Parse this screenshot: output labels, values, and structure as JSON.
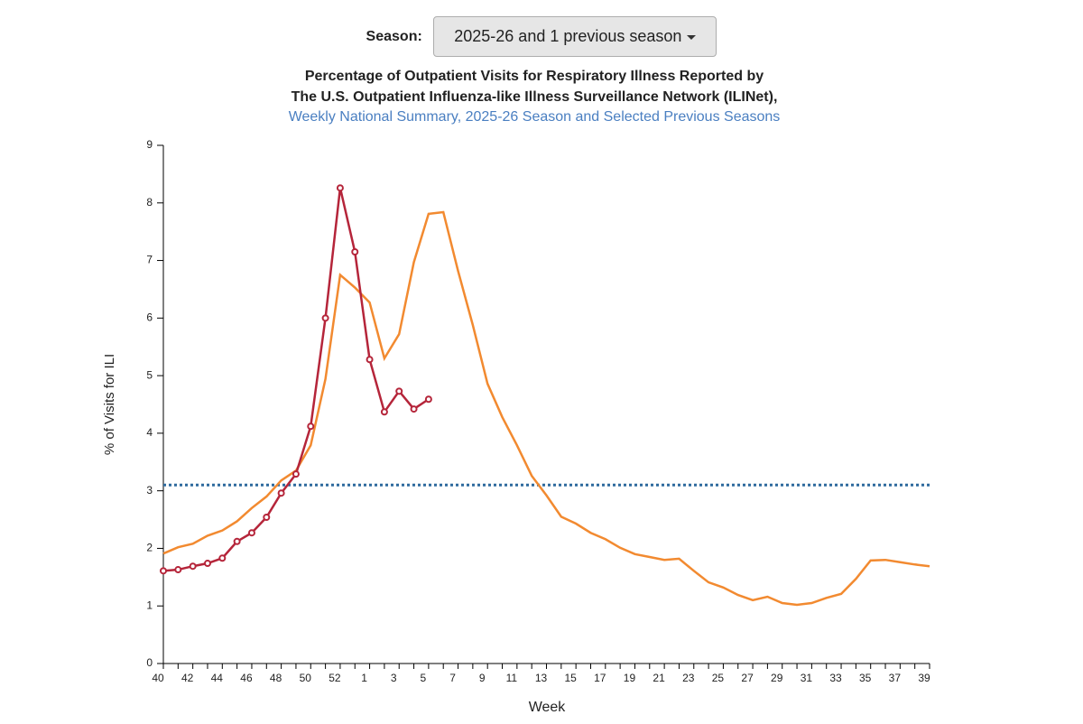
{
  "season_selector": {
    "label": "Season:",
    "value": "2025-26 and 1 previous season"
  },
  "chart_data": {
    "type": "line",
    "title": [
      "Percentage of Outpatient Visits for Respiratory Illness Reported by",
      "The U.S. Outpatient Influenza-like Illness Surveillance Network (ILINet),"
    ],
    "subtitle": "Weekly National Summary, 2025-26 Season and Selected Previous Seasons",
    "x_label": "Week",
    "y_label": "% of Visits for ILI",
    "categories": [
      40,
      null,
      42,
      null,
      44,
      null,
      46,
      null,
      48,
      null,
      50,
      null,
      52,
      null,
      1,
      null,
      3,
      null,
      5,
      null,
      7,
      null,
      9,
      null,
      11,
      null,
      13,
      null,
      15,
      null,
      17,
      null,
      19,
      null,
      21,
      null,
      23,
      null,
      25,
      null,
      27,
      null,
      29,
      null,
      31,
      null,
      33,
      null,
      35,
      null,
      37,
      null,
      39
    ],
    "ylim": [
      0,
      9
    ],
    "yticks": [
      0,
      1,
      2,
      3,
      4,
      5,
      6,
      7,
      8,
      9
    ],
    "baseline": 3.1,
    "baseline_color": "#2e6a9e",
    "series": [
      {
        "color": "#f28a30",
        "markers": false,
        "values": [
          1.91,
          2.02,
          2.08,
          2.22,
          2.31,
          2.47,
          2.7,
          2.9,
          3.18,
          3.35,
          3.79,
          4.94,
          6.75,
          6.53,
          6.27,
          5.3,
          5.72,
          6.97,
          7.81,
          7.84,
          6.82,
          5.88,
          4.86,
          4.28,
          3.79,
          3.26,
          2.92,
          2.55,
          2.43,
          2.27,
          2.16,
          2.01,
          1.9,
          1.85,
          1.8,
          1.82,
          1.61,
          1.41,
          1.32,
          1.19,
          1.1,
          1.16,
          1.05,
          1.02,
          1.05,
          1.14,
          1.21,
          1.47,
          1.79,
          1.8,
          1.76,
          1.72,
          1.69
        ]
      },
      {
        "color": "#b5253a",
        "markers": true,
        "values": [
          1.61,
          1.63,
          1.69,
          1.74,
          1.83,
          2.12,
          2.27,
          2.54,
          2.96,
          3.29,
          4.12,
          6.0,
          8.26,
          7.15,
          5.28,
          4.37,
          4.73,
          4.42,
          4.59,
          null,
          null,
          null,
          null,
          null,
          null,
          null,
          null,
          null,
          null,
          null,
          null,
          null,
          null,
          null,
          null,
          null,
          null,
          null,
          null,
          null,
          null,
          null,
          null,
          null,
          null,
          null,
          null,
          null,
          null,
          null,
          null,
          null,
          null
        ]
      }
    ]
  }
}
